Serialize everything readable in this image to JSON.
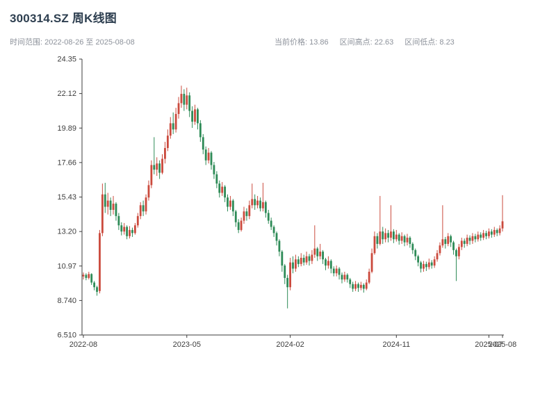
{
  "header": {
    "title": "300314.SZ 周K线图",
    "range_label": "时间范围: 2022-08-26 至 2025-08-08",
    "stats": {
      "current_price": "当前价格: 13.86",
      "range_high": "区间高点: 22.63",
      "range_low": "区间低点: 8.23"
    }
  },
  "chart_data": {
    "type": "candlestick",
    "title": "300314.SZ 周K线图",
    "period": "weekly",
    "date_range": [
      "2022-08-26",
      "2025-08-08"
    ],
    "current_price": 13.86,
    "range_high": 22.63,
    "range_low": 8.23,
    "ylim": [
      6.51,
      24.35
    ],
    "up_color": "#cb4a3d",
    "down_color": "#2e8b57",
    "y_ticks": [
      {
        "value": 6.51,
        "label": "6.510"
      },
      {
        "value": 8.74,
        "label": "8.740"
      },
      {
        "value": 10.97,
        "label": "10.97"
      },
      {
        "value": 13.2,
        "label": "13.20"
      },
      {
        "value": 15.43,
        "label": "15.43"
      },
      {
        "value": 17.66,
        "label": "17.66"
      },
      {
        "value": 19.89,
        "label": "19.89"
      },
      {
        "value": 22.12,
        "label": "22.12"
      },
      {
        "value": 24.35,
        "label": "24.35"
      }
    ],
    "x_ticks": [
      {
        "index": 0,
        "label": "2022-08"
      },
      {
        "index": 38,
        "label": "2023-05"
      },
      {
        "index": 76,
        "label": "2024-02"
      },
      {
        "index": 115,
        "label": "2024-11"
      },
      {
        "index": 149,
        "label": "2025-07"
      },
      {
        "index": 154,
        "label": "2025-08"
      }
    ],
    "candles": [
      [
        10.3,
        10.55,
        10.1,
        10.4
      ],
      [
        10.4,
        10.5,
        10.05,
        10.2
      ],
      [
        10.2,
        10.6,
        10.1,
        10.45
      ],
      [
        10.45,
        10.5,
        9.75,
        9.9
      ],
      [
        9.9,
        10.0,
        9.4,
        9.6
      ],
      [
        9.6,
        9.7,
        9.05,
        9.3
      ],
      [
        9.35,
        13.3,
        9.2,
        13.1
      ],
      [
        13.1,
        16.3,
        12.9,
        15.6
      ],
      [
        15.6,
        16.35,
        14.4,
        14.8
      ],
      [
        14.8,
        15.7,
        14.3,
        15.2
      ],
      [
        15.2,
        15.4,
        14.2,
        14.6
      ],
      [
        14.6,
        15.5,
        14.3,
        15.0
      ],
      [
        15.0,
        15.1,
        13.9,
        14.2
      ],
      [
        14.2,
        14.4,
        13.3,
        13.6
      ],
      [
        13.6,
        13.8,
        12.95,
        13.2
      ],
      [
        13.2,
        13.75,
        13.0,
        13.5
      ],
      [
        13.5,
        13.6,
        12.7,
        12.9
      ],
      [
        12.9,
        13.55,
        12.75,
        13.3
      ],
      [
        13.3,
        13.45,
        12.85,
        13.1
      ],
      [
        13.1,
        13.75,
        13.0,
        13.6
      ],
      [
        13.6,
        14.4,
        13.45,
        14.2
      ],
      [
        14.2,
        15.1,
        14.0,
        14.9
      ],
      [
        14.9,
        15.2,
        14.2,
        14.5
      ],
      [
        14.5,
        15.6,
        14.3,
        15.4
      ],
      [
        15.4,
        16.5,
        15.2,
        16.2
      ],
      [
        16.2,
        17.8,
        16.0,
        17.5
      ],
      [
        17.5,
        19.3,
        16.9,
        17.2
      ],
      [
        17.2,
        18.0,
        16.8,
        17.6
      ],
      [
        17.6,
        17.8,
        16.6,
        17.0
      ],
      [
        17.0,
        18.2,
        16.9,
        17.9
      ],
      [
        17.9,
        19.0,
        17.6,
        18.6
      ],
      [
        18.6,
        19.8,
        18.4,
        19.4
      ],
      [
        19.4,
        20.6,
        19.2,
        20.2
      ],
      [
        20.2,
        20.9,
        19.5,
        19.8
      ],
      [
        19.8,
        21.2,
        19.6,
        20.8
      ],
      [
        20.8,
        21.9,
        20.5,
        21.5
      ],
      [
        21.5,
        22.63,
        21.2,
        22.1
      ],
      [
        22.1,
        22.4,
        21.0,
        21.4
      ],
      [
        21.4,
        22.5,
        21.1,
        22.0
      ],
      [
        22.0,
        22.2,
        20.6,
        21.0
      ],
      [
        21.0,
        21.3,
        19.9,
        20.3
      ],
      [
        20.3,
        21.4,
        20.1,
        21.1
      ],
      [
        21.1,
        21.2,
        19.8,
        20.2
      ],
      [
        20.2,
        20.4,
        19.0,
        19.3
      ],
      [
        19.3,
        19.5,
        18.2,
        18.5
      ],
      [
        18.5,
        18.7,
        17.5,
        17.8
      ],
      [
        17.8,
        18.6,
        17.6,
        18.3
      ],
      [
        18.3,
        18.4,
        17.2,
        17.5
      ],
      [
        17.5,
        17.7,
        16.6,
        16.9
      ],
      [
        16.9,
        17.1,
        16.0,
        16.3
      ],
      [
        16.3,
        16.5,
        15.4,
        15.7
      ],
      [
        15.7,
        16.4,
        15.5,
        16.1
      ],
      [
        16.1,
        16.2,
        15.1,
        15.4
      ],
      [
        15.4,
        15.6,
        14.5,
        14.8
      ],
      [
        14.8,
        15.5,
        14.6,
        15.2
      ],
      [
        15.2,
        15.3,
        14.2,
        14.5
      ],
      [
        14.5,
        14.6,
        13.5,
        13.8
      ],
      [
        13.8,
        14.0,
        13.1,
        13.3
      ],
      [
        13.3,
        14.1,
        13.2,
        13.9
      ],
      [
        13.9,
        14.8,
        13.7,
        14.5
      ],
      [
        14.5,
        14.7,
        13.9,
        14.2
      ],
      [
        14.2,
        15.2,
        14.0,
        14.9
      ],
      [
        14.9,
        16.3,
        14.7,
        15.3
      ],
      [
        15.3,
        15.6,
        14.6,
        14.9
      ],
      [
        14.9,
        15.5,
        14.7,
        15.2
      ],
      [
        15.2,
        15.4,
        14.5,
        14.7
      ],
      [
        14.7,
        16.35,
        14.5,
        15.1
      ],
      [
        15.1,
        15.2,
        14.1,
        14.4
      ],
      [
        14.4,
        14.6,
        13.7,
        13.9
      ],
      [
        13.9,
        14.1,
        13.3,
        13.5
      ],
      [
        13.5,
        13.6,
        12.85,
        13.1
      ],
      [
        13.1,
        13.2,
        12.3,
        12.6
      ],
      [
        12.6,
        12.7,
        11.6,
        11.9
      ],
      [
        11.9,
        12.0,
        10.6,
        11.0
      ],
      [
        11.0,
        11.1,
        9.8,
        10.2
      ],
      [
        10.2,
        10.4,
        8.23,
        9.6
      ],
      [
        9.6,
        11.5,
        9.4,
        11.2
      ],
      [
        11.2,
        11.6,
        10.5,
        10.8
      ],
      [
        10.8,
        11.7,
        10.6,
        11.4
      ],
      [
        11.4,
        11.6,
        10.9,
        11.1
      ],
      [
        11.1,
        11.8,
        10.95,
        11.5
      ],
      [
        11.5,
        11.7,
        11.0,
        11.2
      ],
      [
        11.2,
        11.9,
        11.05,
        11.6
      ],
      [
        11.6,
        11.75,
        11.0,
        11.3
      ],
      [
        11.3,
        12.0,
        11.1,
        11.7
      ],
      [
        11.7,
        13.6,
        11.5,
        12.1
      ],
      [
        12.1,
        12.2,
        11.3,
        11.6
      ],
      [
        11.6,
        12.4,
        11.4,
        11.9
      ],
      [
        11.9,
        12.0,
        11.1,
        11.4
      ],
      [
        11.4,
        11.5,
        10.7,
        11.0
      ],
      [
        11.0,
        11.6,
        10.8,
        11.3
      ],
      [
        11.3,
        11.4,
        10.5,
        10.8
      ],
      [
        10.8,
        10.95,
        10.3,
        10.5
      ],
      [
        10.5,
        11.0,
        10.3,
        10.8
      ],
      [
        10.8,
        10.9,
        10.1,
        10.4
      ],
      [
        10.4,
        10.55,
        9.85,
        10.1
      ],
      [
        10.1,
        10.6,
        9.95,
        10.4
      ],
      [
        10.4,
        10.5,
        9.9,
        10.1
      ],
      [
        10.1,
        10.2,
        9.55,
        9.8
      ],
      [
        9.8,
        9.95,
        9.3,
        9.5
      ],
      [
        9.5,
        10.0,
        9.35,
        9.8
      ],
      [
        9.8,
        9.9,
        9.3,
        9.55
      ],
      [
        9.55,
        9.95,
        9.4,
        9.75
      ],
      [
        9.75,
        9.85,
        9.25,
        9.5
      ],
      [
        9.5,
        10.1,
        9.4,
        9.9
      ],
      [
        9.9,
        10.8,
        9.8,
        10.6
      ],
      [
        10.6,
        12.1,
        10.5,
        11.8
      ],
      [
        11.8,
        13.2,
        11.7,
        12.9
      ],
      [
        12.9,
        13.1,
        12.1,
        12.4
      ],
      [
        12.4,
        15.5,
        12.3,
        13.2
      ],
      [
        13.2,
        13.5,
        12.4,
        12.7
      ],
      [
        12.7,
        13.4,
        12.5,
        13.1
      ],
      [
        13.1,
        13.3,
        12.5,
        12.8
      ],
      [
        12.8,
        14.9,
        12.6,
        13.2
      ],
      [
        13.2,
        13.35,
        12.45,
        12.7
      ],
      [
        12.7,
        13.3,
        12.55,
        13.0
      ],
      [
        13.0,
        13.1,
        12.35,
        12.6
      ],
      [
        12.6,
        13.15,
        12.4,
        12.9
      ],
      [
        12.9,
        13.0,
        12.25,
        12.5
      ],
      [
        12.5,
        13.05,
        12.3,
        12.8
      ],
      [
        12.8,
        12.9,
        12.15,
        12.4
      ],
      [
        12.4,
        12.5,
        11.75,
        12.0
      ],
      [
        12.0,
        12.1,
        11.35,
        11.6
      ],
      [
        11.6,
        11.7,
        10.95,
        11.2
      ],
      [
        11.2,
        11.3,
        10.55,
        10.8
      ],
      [
        10.8,
        11.3,
        10.6,
        11.1
      ],
      [
        11.1,
        11.25,
        10.65,
        10.9
      ],
      [
        10.9,
        11.45,
        10.75,
        11.2
      ],
      [
        11.2,
        11.35,
        10.8,
        11.0
      ],
      [
        11.0,
        11.6,
        10.85,
        11.4
      ],
      [
        11.4,
        12.0,
        11.25,
        11.8
      ],
      [
        11.8,
        12.5,
        11.65,
        12.3
      ],
      [
        12.3,
        14.9,
        12.15,
        12.7
      ],
      [
        12.7,
        12.85,
        12.1,
        12.4
      ],
      [
        12.4,
        13.1,
        12.25,
        12.9
      ],
      [
        12.9,
        13.0,
        12.2,
        12.5
      ],
      [
        12.5,
        12.6,
        11.7,
        12.0
      ],
      [
        12.0,
        12.1,
        10.0,
        11.6
      ],
      [
        11.6,
        12.4,
        11.4,
        12.2
      ],
      [
        12.2,
        12.8,
        12.0,
        12.6
      ],
      [
        12.6,
        12.75,
        12.15,
        12.4
      ],
      [
        12.4,
        13.0,
        12.25,
        12.8
      ],
      [
        12.8,
        12.95,
        12.35,
        12.6
      ],
      [
        12.6,
        13.1,
        12.4,
        12.9
      ],
      [
        12.9,
        13.05,
        12.5,
        12.7
      ],
      [
        12.7,
        13.2,
        12.55,
        13.0
      ],
      [
        13.0,
        13.15,
        12.6,
        12.8
      ],
      [
        12.8,
        13.3,
        12.65,
        13.1
      ],
      [
        13.1,
        13.25,
        12.7,
        12.9
      ],
      [
        12.9,
        13.4,
        12.75,
        13.2
      ],
      [
        13.2,
        13.35,
        12.8,
        13.0
      ],
      [
        13.0,
        13.5,
        12.85,
        13.3
      ],
      [
        13.3,
        13.4,
        12.9,
        13.1
      ],
      [
        13.1,
        13.6,
        12.95,
        13.4
      ],
      [
        13.4,
        15.55,
        13.2,
        13.86
      ]
    ]
  }
}
